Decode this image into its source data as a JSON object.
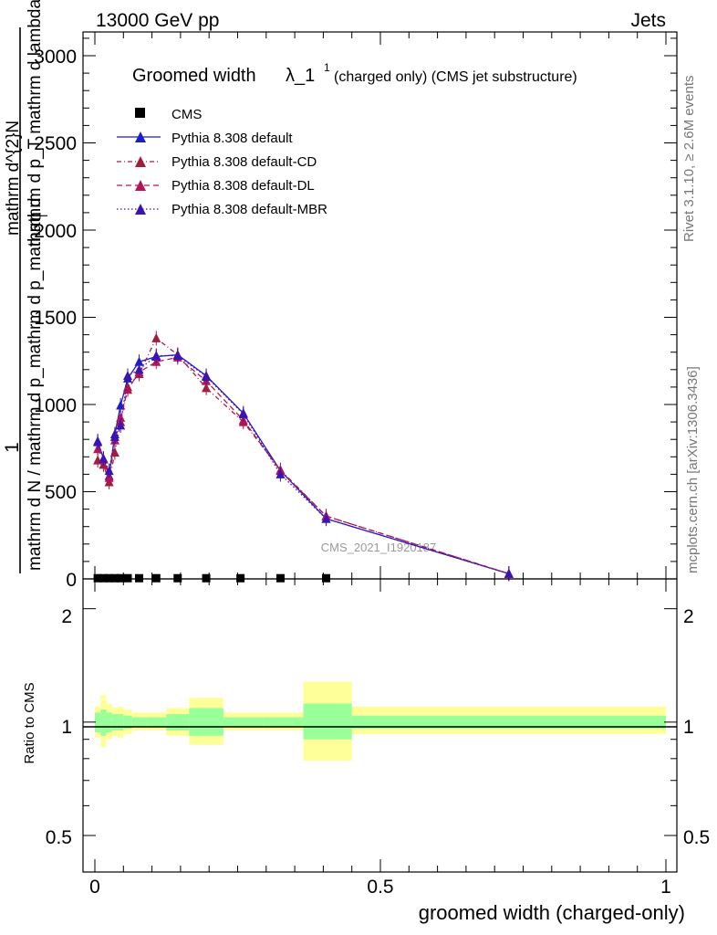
{
  "header": {
    "left": "13000 GeV pp",
    "right": "Jets"
  },
  "side_labels": {
    "rivet": "Rivet 3.1.10, ≥ 2.6M events",
    "mcplots": "mcplots.cern.ch [arXiv:1306.3436]"
  },
  "watermark": "CMS_2021_I1920187",
  "main_title": {
    "prefix": "Groomed width",
    "lambda": "λ_1",
    "superscript": "1",
    "suffix": "(charged only) (CMS jet substructure)"
  },
  "y_axis_upper": {
    "frac_left_num": "1",
    "frac_left_den": "mathrm d N / mathrm d p_mathrm d p_mathrm d",
    "frac_right_num": "mathrm d^{2}N",
    "frac_right_den": "mathrm d p_T mathrm d lambda",
    "mid_glyph": "T"
  },
  "y_axis_lower": {
    "label": "Ratio to CMS"
  },
  "x_axis": {
    "label": "groomed width (charged-only)"
  },
  "upper_ticks": [
    "0",
    "500",
    "1000",
    "1500",
    "2000",
    "2500",
    "3000"
  ],
  "lower_ticks": [
    "0.5",
    "1",
    "2"
  ],
  "x_ticks": [
    "0",
    "0.5",
    "1"
  ],
  "colors": {
    "default": "#1c1cc8",
    "cd": "#a01e3c",
    "dl": "#b4145a",
    "mbr": "#3c14b4",
    "band_inner": "#99ff99",
    "band_outer": "#ffff99"
  },
  "chart_data": {
    "type": "line",
    "xlim": [
      -0.02,
      1.02
    ],
    "ylim_upper": [
      0,
      3000
    ],
    "ylim_lower": [
      0.4,
      2.4
    ],
    "ylog_lower": true,
    "cms_points": {
      "name": "CMS",
      "x": [
        0.005,
        0.015,
        0.025,
        0.035,
        0.045,
        0.0575,
        0.0775,
        0.1075,
        0.145,
        0.195,
        0.255,
        0.325,
        0.405
      ],
      "y": [
        4,
        4,
        4,
        4,
        4,
        4,
        4,
        4,
        4,
        4,
        4,
        4,
        4
      ]
    },
    "series": [
      {
        "name": "Pythia 8.308 default",
        "x": [
          0.005,
          0.015,
          0.025,
          0.035,
          0.045,
          0.0575,
          0.0775,
          0.1075,
          0.145,
          0.195,
          0.26,
          0.325,
          0.405,
          0.725
        ],
        "y": [
          790,
          690,
          590,
          830,
          995,
          1150,
          1245,
          1275,
          1285,
          1165,
          950,
          620,
          345,
          30
        ]
      },
      {
        "name": "Pythia 8.308 default-CD",
        "x": [
          0.005,
          0.015,
          0.025,
          0.035,
          0.045,
          0.0575,
          0.0775,
          0.1075,
          0.145,
          0.195,
          0.26,
          0.325,
          0.405,
          0.725
        ],
        "y": [
          680,
          655,
          555,
          725,
          900,
          1100,
          1175,
          1380,
          1285,
          1095,
          900,
          625,
          360,
          30
        ]
      },
      {
        "name": "Pythia 8.308 default-DL",
        "x": [
          0.005,
          0.015,
          0.025,
          0.035,
          0.045,
          0.0575,
          0.0775,
          0.1075,
          0.145,
          0.195,
          0.26,
          0.325,
          0.405,
          0.725
        ],
        "y": [
          745,
          685,
          580,
          795,
          925,
          1085,
          1185,
          1245,
          1270,
          1135,
          910,
          620,
          360,
          30
        ]
      },
      {
        "name": "Pythia 8.308 default-MBR",
        "x": [
          0.005,
          0.015,
          0.025,
          0.035,
          0.045,
          0.0575,
          0.0775,
          0.1075,
          0.145,
          0.195,
          0.26,
          0.325,
          0.405,
          0.725
        ],
        "y": [
          785,
          690,
          620,
          815,
          880,
          1165,
          1200,
          1280,
          1280,
          1160,
          945,
          600,
          345,
          30
        ]
      }
    ],
    "ratio_bands": {
      "edges": [
        0.0,
        0.01,
        0.02,
        0.03,
        0.04,
        0.05,
        0.065,
        0.09,
        0.125,
        0.165,
        0.225,
        0.295,
        0.365,
        0.45,
        1.0
      ],
      "inner_lo": [
        0.94,
        0.92,
        0.94,
        0.95,
        0.95,
        0.96,
        0.97,
        0.97,
        0.95,
        0.92,
        0.97,
        0.97,
        0.9,
        0.96
      ],
      "inner_hi": [
        1.06,
        1.08,
        1.06,
        1.05,
        1.05,
        1.04,
        1.03,
        1.03,
        1.05,
        1.09,
        1.03,
        1.03,
        1.12,
        1.04
      ],
      "outer_lo": [
        0.91,
        0.86,
        0.9,
        0.92,
        0.91,
        0.93,
        0.95,
        0.95,
        0.92,
        0.87,
        0.95,
        0.95,
        0.79,
        0.93
      ],
      "outer_hi": [
        1.1,
        1.18,
        1.12,
        1.09,
        1.1,
        1.08,
        1.06,
        1.06,
        1.09,
        1.16,
        1.06,
        1.06,
        1.28,
        1.1
      ]
    },
    "legend_position": "top-left",
    "grid": false
  }
}
